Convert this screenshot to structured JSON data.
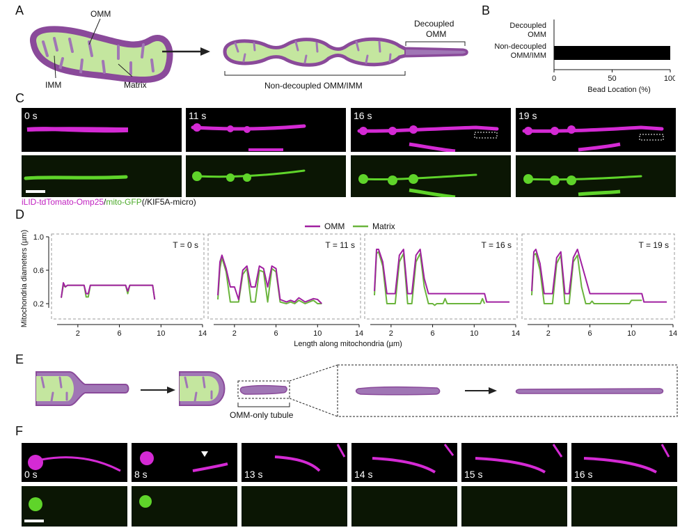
{
  "panels": {
    "A": {
      "label": "A",
      "omm": "OMM",
      "imm": "IMM",
      "matrix": "Matrix",
      "decoupled_1": "Decoupled",
      "decoupled_2": "OMM",
      "non_decoupled": "Non-decoupled OMM/IMM"
    },
    "B": {
      "label": "B"
    },
    "C": {
      "label": "C",
      "times": [
        "0 s",
        "11 s",
        "16 s",
        "19 s"
      ],
      "caption_part1": "iLID-tdTomato-Omp25",
      "caption_sep1": "/",
      "caption_part2": "mito-GFP",
      "caption_part3": "(/KIF5A-micro)",
      "magenta": "#d42ad4",
      "green": "#5fd42a"
    },
    "D": {
      "label": "D",
      "legend_omm": "OMM",
      "legend_matrix": "Matrix",
      "omm_color": "#a020a0",
      "matrix_color": "#6ab43c"
    },
    "E": {
      "label": "E",
      "tubule": "OMM-only tubule"
    },
    "F": {
      "label": "F",
      "times": [
        "0 s",
        "8 s",
        "13 s",
        "14 s",
        "15 s",
        "16 s"
      ]
    }
  },
  "chart_data": [
    {
      "type": "bar",
      "orientation": "horizontal",
      "categories": [
        "Decoupled OMM",
        "Non-decoupled OMM/IMM"
      ],
      "category_lines": [
        [
          "Decoupled",
          "OMM"
        ],
        [
          "Non-decoupled",
          "OMM/IMM"
        ]
      ],
      "values": [
        0,
        100
      ],
      "xlabel": "Bead Location (%)",
      "xlim": [
        0,
        100
      ],
      "xticks": [
        0,
        50,
        100
      ],
      "bar_color": "#000000"
    },
    {
      "type": "line",
      "ylabel": "Mitochondria diameters (µm)",
      "xlabel": "Length along mitochondria (µm)",
      "ylim": [
        0.1,
        1.0
      ],
      "yticks": [
        0.2,
        0.6,
        1.0
      ],
      "xlim": [
        0,
        14
      ],
      "xticks": [
        2,
        6,
        10,
        14
      ],
      "legend": [
        "OMM",
        "Matrix"
      ],
      "subplots": [
        {
          "title": "T = 0 s",
          "series": [
            {
              "name": "OMM",
              "x": [
                0.4,
                0.6,
                0.8,
                1.0,
                2.6,
                2.8,
                3.0,
                3.2,
                3.4,
                6.6,
                6.8,
                7.0,
                9.2,
                9.4
              ],
              "y": [
                0.27,
                0.45,
                0.4,
                0.42,
                0.42,
                0.32,
                0.32,
                0.42,
                0.42,
                0.42,
                0.35,
                0.42,
                0.42,
                0.25
              ]
            },
            {
              "name": "Matrix",
              "x": [
                0.4,
                0.6,
                0.8,
                1.0,
                2.6,
                2.8,
                3.0,
                3.2,
                3.4,
                6.6,
                6.8,
                7.0,
                9.2,
                9.4
              ],
              "y": [
                0.27,
                0.42,
                0.4,
                0.42,
                0.42,
                0.28,
                0.28,
                0.42,
                0.42,
                0.42,
                0.32,
                0.42,
                0.42,
                0.25
              ]
            }
          ]
        },
        {
          "title": "T = 11 s",
          "series": [
            {
              "name": "OMM",
              "x": [
                0.4,
                0.6,
                0.8,
                1.2,
                1.6,
                2.0,
                2.4,
                2.8,
                3.2,
                3.6,
                4.0,
                4.4,
                4.8,
                5.2,
                5.6,
                6.0,
                6.4,
                7.0,
                7.4,
                7.8,
                8.2,
                8.8,
                9.2,
                9.6,
                10.0,
                10.4
              ],
              "y": [
                0.3,
                0.7,
                0.78,
                0.62,
                0.4,
                0.4,
                0.25,
                0.6,
                0.65,
                0.4,
                0.4,
                0.65,
                0.62,
                0.4,
                0.65,
                0.62,
                0.25,
                0.22,
                0.24,
                0.22,
                0.27,
                0.22,
                0.24,
                0.26,
                0.25,
                0.2
              ]
            },
            {
              "name": "Matrix",
              "x": [
                0.4,
                0.6,
                0.8,
                1.2,
                1.6,
                2.0,
                2.4,
                2.8,
                3.2,
                3.6,
                4.0,
                4.4,
                4.8,
                5.2,
                5.6,
                6.0,
                6.4,
                7.0,
                7.4,
                7.8,
                8.2,
                8.8,
                9.2,
                9.6,
                10.0,
                10.4
              ],
              "y": [
                0.25,
                0.62,
                0.75,
                0.58,
                0.22,
                0.22,
                0.22,
                0.55,
                0.62,
                0.22,
                0.22,
                0.6,
                0.58,
                0.22,
                0.62,
                0.58,
                0.22,
                0.2,
                0.22,
                0.2,
                0.24,
                0.2,
                0.22,
                0.24,
                0.2,
                0.2
              ]
            }
          ]
        },
        {
          "title": "T = 16 s",
          "series": [
            {
              "name": "OMM",
              "x": [
                0.4,
                0.6,
                0.8,
                1.2,
                1.6,
                2.0,
                2.4,
                2.8,
                3.2,
                3.6,
                4.0,
                4.4,
                4.8,
                5.2,
                5.6,
                6.0,
                6.4,
                8.0,
                10.0,
                11.0,
                11.2,
                13.4
              ],
              "y": [
                0.35,
                0.85,
                0.85,
                0.7,
                0.32,
                0.32,
                0.32,
                0.78,
                0.85,
                0.32,
                0.32,
                0.78,
                0.85,
                0.5,
                0.32,
                0.32,
                0.32,
                0.32,
                0.32,
                0.32,
                0.22,
                0.22
              ]
            },
            {
              "name": "Matrix",
              "x": [
                0.4,
                0.6,
                0.8,
                1.2,
                1.6,
                2.0,
                2.4,
                2.8,
                3.2,
                3.6,
                4.0,
                4.4,
                4.8,
                5.2,
                5.6,
                6.0,
                6.2,
                6.4,
                7.0,
                7.2,
                7.4,
                10.6,
                10.8,
                11.0
              ],
              "y": [
                0.3,
                0.8,
                0.82,
                0.65,
                0.2,
                0.2,
                0.2,
                0.7,
                0.8,
                0.2,
                0.2,
                0.7,
                0.8,
                0.4,
                0.2,
                0.2,
                0.18,
                0.2,
                0.2,
                0.26,
                0.2,
                0.2,
                0.26,
                0.2
              ]
            }
          ]
        },
        {
          "title": "T = 19 s",
          "series": [
            {
              "name": "OMM",
              "x": [
                0.4,
                0.6,
                0.8,
                1.2,
                1.6,
                2.0,
                2.4,
                2.8,
                3.2,
                3.6,
                4.0,
                4.4,
                4.8,
                6.0,
                10.0,
                11.0,
                11.2,
                13.4
              ],
              "y": [
                0.35,
                0.82,
                0.85,
                0.68,
                0.32,
                0.32,
                0.32,
                0.75,
                0.82,
                0.32,
                0.32,
                0.75,
                0.85,
                0.32,
                0.32,
                0.32,
                0.22,
                0.22
              ]
            },
            {
              "name": "Matrix",
              "x": [
                0.4,
                0.6,
                0.8,
                1.2,
                1.6,
                2.0,
                2.4,
                2.8,
                3.2,
                3.6,
                4.0,
                4.4,
                4.8,
                5.2,
                5.6,
                6.0,
                6.2,
                6.4,
                9.8,
                10.0,
                10.4,
                11.0
              ],
              "y": [
                0.3,
                0.78,
                0.8,
                0.6,
                0.2,
                0.2,
                0.2,
                0.68,
                0.78,
                0.2,
                0.2,
                0.7,
                0.78,
                0.4,
                0.2,
                0.2,
                0.23,
                0.2,
                0.2,
                0.24,
                0.24,
                0.24
              ]
            }
          ]
        }
      ]
    }
  ]
}
